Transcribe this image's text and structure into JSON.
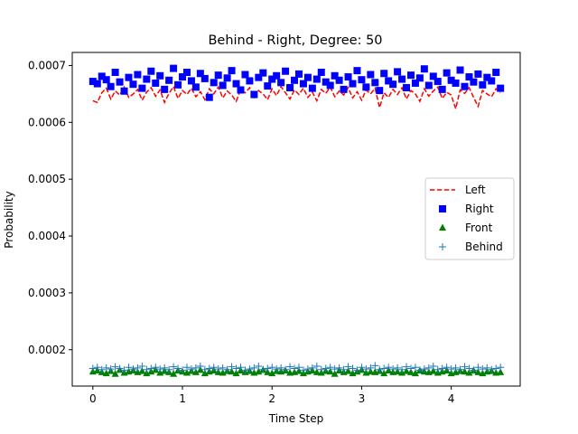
{
  "chart_data": {
    "type": "line",
    "title": "Behind - Right, Degree: 50",
    "xlabel": "Time Step",
    "ylabel": "Probability",
    "xlim": [
      -0.23,
      4.77
    ],
    "ylim": [
      0.000136,
      0.000723
    ],
    "x_ticks": [
      0,
      1,
      2,
      3,
      4
    ],
    "x_tick_labels": [
      "0",
      "1",
      "2",
      "3",
      "4"
    ],
    "y_ticks": [
      0.0002,
      0.0003,
      0.0004,
      0.0005,
      0.0006,
      0.0007
    ],
    "y_tick_labels": [
      "0.0002",
      "0.0003",
      "0.0004",
      "0.0005",
      "0.0006",
      "0.0007"
    ],
    "legend_position": "center-right",
    "x_range": [
      0,
      4.55
    ],
    "n_points": 92,
    "series": [
      {
        "name": "Left",
        "style": "dashed-line",
        "color": "#ff0000",
        "mean": 0.00065,
        "spread": 1.5e-05,
        "values": [
          0.000638,
          0.000635,
          0.000652,
          0.00066,
          0.000641,
          0.000655,
          0.000648,
          0.000662,
          0.000644,
          0.00065,
          0.000658,
          0.000639,
          0.000653,
          0.000661,
          0.000646,
          0.000657,
          0.000635,
          0.000651,
          0.000663,
          0.000642,
          0.000656,
          0.000649,
          0.00066,
          0.000645,
          0.000654,
          0.00064,
          0.000659,
          0.00065,
          0.000662,
          0.000643,
          0.000655,
          0.000648,
          0.000637,
          0.000658,
          0.000652,
          0.000661,
          0.000644,
          0.000656,
          0.00065,
          0.00064,
          0.000659,
          0.000647,
          0.000663,
          0.000652,
          0.000641,
          0.000657,
          0.000649,
          0.00066,
          0.000644,
          0.000653,
          0.000638,
          0.000658,
          0.000651,
          0.000662,
          0.000645,
          0.000655,
          0.000648,
          0.000661,
          0.000643,
          0.000654,
          0.000639,
          0.000657,
          0.00065,
          0.00066,
          0.000626,
          0.000652,
          0.000644,
          0.000658,
          0.000649,
          0.000661,
          0.000641,
          0.000656,
          0.00065,
          0.000637,
          0.000659,
          0.000646,
          0.000655,
          0.000662,
          0.000642,
          0.000653,
          0.000648,
          0.000624,
          0.000657,
          0.000651,
          0.000661,
          0.000644,
          0.000628,
          0.000656,
          0.00065,
          0.000645,
          0.000659,
          0.000652
        ]
      },
      {
        "name": "Right",
        "style": "square-markers",
        "color": "#0000ff",
        "mean": 0.00067,
        "spread": 1.3e-05,
        "values": [
          0.000672,
          0.000668,
          0.000681,
          0.000675,
          0.000663,
          0.000688,
          0.000671,
          0.000655,
          0.000679,
          0.000667,
          0.000684,
          0.00066,
          0.000676,
          0.00069,
          0.000669,
          0.000682,
          0.000658,
          0.000674,
          0.000695,
          0.000666,
          0.00068,
          0.000688,
          0.000673,
          0.000662,
          0.000686,
          0.000677,
          0.000644,
          0.00067,
          0.000683,
          0.000665,
          0.000678,
          0.000691,
          0.000668,
          0.000657,
          0.000684,
          0.000673,
          0.000649,
          0.000679,
          0.000687,
          0.000664,
          0.000676,
          0.000682,
          0.00067,
          0.00069,
          0.000661,
          0.000674,
          0.000685,
          0.000668,
          0.000679,
          0.00066,
          0.000676,
          0.000688,
          0.000671,
          0.000665,
          0.000682,
          0.000674,
          0.000658,
          0.00068,
          0.000668,
          0.000691,
          0.000675,
          0.000662,
          0.000684,
          0.00067,
          0.000656,
          0.000686,
          0.000673,
          0.000667,
          0.000689,
          0.000676,
          0.000661,
          0.000683,
          0.000669,
          0.000678,
          0.000694,
          0.000665,
          0.000681,
          0.000672,
          0.000658,
          0.000687,
          0.000674,
          0.000669,
          0.000692,
          0.000663,
          0.00068,
          0.000671,
          0.000685,
          0.000666,
          0.000679,
          0.000673,
          0.000688,
          0.00066
        ]
      },
      {
        "name": "Front",
        "style": "triangle-markers",
        "color": "#008000",
        "mean": 0.00016,
        "spread": 3e-06,
        "values": [
          0.000161,
          0.000163,
          0.00016,
          0.000158,
          0.000162,
          0.000157,
          0.000164,
          0.000159,
          0.000161,
          0.000163,
          0.00016,
          0.000162,
          0.000158,
          0.000161,
          0.000164,
          0.000159,
          0.000162,
          0.00016,
          0.000157,
          0.000163,
          0.000161,
          0.000159,
          0.000162,
          0.00016,
          0.000164,
          0.000158,
          0.000161,
          0.000163,
          0.00016,
          0.000159,
          0.000162,
          0.000161,
          0.000158,
          0.000163,
          0.00016,
          0.000162,
          0.000159,
          0.000161,
          0.000164,
          0.00016,
          0.000158,
          0.000162,
          0.000161,
          0.000163,
          0.000159,
          0.00016,
          0.000162,
          0.000158,
          0.000161,
          0.000163,
          0.00016,
          0.000159,
          0.000162,
          0.000161,
          0.000157,
          0.000163,
          0.00016,
          0.000162,
          0.000158,
          0.000161,
          0.000164,
          0.000159,
          0.000161,
          0.00016,
          0.000162,
          0.000158,
          0.000163,
          0.00016,
          0.000161,
          0.000159,
          0.000162,
          0.00016,
          0.000158,
          0.000163,
          0.000161,
          0.00016,
          0.000162,
          0.000159,
          0.000161,
          0.000163,
          0.000158,
          0.00016,
          0.000162,
          0.000161,
          0.000159,
          0.000163,
          0.00016,
          0.000158,
          0.000161,
          0.000162,
          0.000159,
          0.00016
        ]
      },
      {
        "name": "Behind",
        "style": "plus-markers",
        "color": "#1f77b4",
        "mean": 0.000167,
        "spread": 3e-06,
        "values": [
          0.000167,
          0.000169,
          0.000165,
          0.000168,
          0.000166,
          0.00017,
          0.000167,
          0.000164,
          0.000169,
          0.000166,
          0.000168,
          0.000171,
          0.000165,
          0.000167,
          0.000169,
          0.000166,
          0.000168,
          0.000165,
          0.00017,
          0.000167,
          0.000164,
          0.000169,
          0.000166,
          0.000168,
          0.000171,
          0.000165,
          0.000167,
          0.000169,
          0.000166,
          0.000168,
          0.000165,
          0.00017,
          0.000167,
          0.000169,
          0.000164,
          0.000166,
          0.000168,
          0.000171,
          0.000165,
          0.000167,
          0.000169,
          0.000166,
          0.000168,
          0.000165,
          0.00017,
          0.000167,
          0.000169,
          0.000164,
          0.000166,
          0.000168,
          0.000171,
          0.000165,
          0.000167,
          0.000169,
          0.000166,
          0.000168,
          0.000165,
          0.00017,
          0.000167,
          0.000164,
          0.000169,
          0.000166,
          0.000168,
          0.000172,
          0.000165,
          0.000167,
          0.000169,
          0.000166,
          0.000168,
          0.000165,
          0.00017,
          0.000167,
          0.000169,
          0.000164,
          0.000166,
          0.000168,
          0.000171,
          0.000165,
          0.000167,
          0.000169,
          0.000166,
          0.000168,
          0.000165,
          0.00017,
          0.000167,
          0.000164,
          0.000169,
          0.000166,
          0.000168,
          0.000165,
          0.000167,
          0.000169
        ]
      }
    ]
  }
}
